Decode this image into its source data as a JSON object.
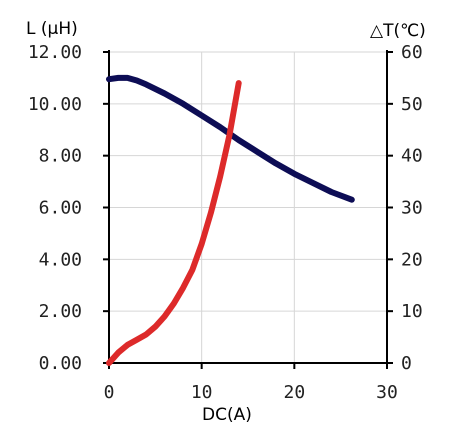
{
  "chart_data": {
    "type": "line",
    "xlabel": "DC(A)",
    "ylabel_left": "L (μH)",
    "ylabel_right": "△T(℃)",
    "xlim": [
      0,
      30
    ],
    "ylim_left": [
      0,
      12
    ],
    "ylim_right": [
      0,
      60
    ],
    "x_ticks": [
      "0",
      "10",
      "20",
      "30"
    ],
    "y_left_ticks": [
      "0.00",
      "2.00",
      "4.00",
      "6.00",
      "8.00",
      "10.00",
      "12.00"
    ],
    "y_right_ticks": [
      "0",
      "10",
      "20",
      "30",
      "40",
      "50",
      "60"
    ],
    "grid": true,
    "series": [
      {
        "axis": "left",
        "color": "#0d0d55",
        "points": [
          [
            0,
            10.95
          ],
          [
            1,
            11.0
          ],
          [
            2,
            11.0
          ],
          [
            3,
            10.9
          ],
          [
            4,
            10.75
          ],
          [
            6,
            10.4
          ],
          [
            8,
            10.0
          ],
          [
            10,
            9.55
          ],
          [
            12,
            9.1
          ],
          [
            14,
            8.6
          ],
          [
            16,
            8.15
          ],
          [
            18,
            7.7
          ],
          [
            20,
            7.3
          ],
          [
            22,
            6.95
          ],
          [
            24,
            6.6
          ],
          [
            26.2,
            6.3
          ]
        ]
      },
      {
        "axis": "right",
        "color": "#dd2a2a",
        "points": [
          [
            0,
            0
          ],
          [
            1,
            2
          ],
          [
            2,
            3.5
          ],
          [
            3,
            4.5
          ],
          [
            4,
            5.5
          ],
          [
            5,
            7
          ],
          [
            6,
            9
          ],
          [
            7,
            11.5
          ],
          [
            8,
            14.5
          ],
          [
            9,
            18
          ],
          [
            10,
            23
          ],
          [
            11,
            29
          ],
          [
            12,
            36
          ],
          [
            13,
            44
          ],
          [
            14,
            54
          ]
        ]
      }
    ]
  }
}
